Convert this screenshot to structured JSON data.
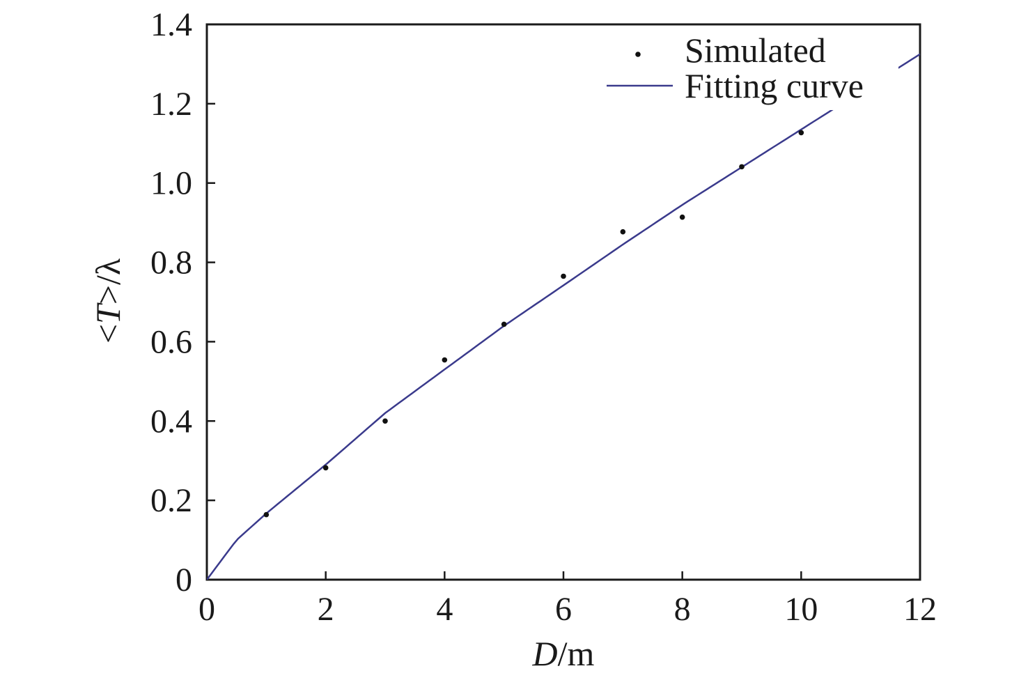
{
  "chart_data": {
    "type": "scatter",
    "xlabel": {
      "var": "D",
      "unit": "/m"
    },
    "ylabel": {
      "prefix": "<",
      "var": "T",
      "suffix": ">/λ"
    },
    "xlim": [
      0,
      12
    ],
    "ylim": [
      0,
      1.4
    ],
    "xticks": [
      0,
      2,
      4,
      6,
      8,
      10,
      12
    ],
    "xtick_labels": [
      "0",
      "2",
      "4",
      "6",
      "8",
      "10",
      "12"
    ],
    "yticks": [
      0,
      0.2,
      0.4,
      0.6,
      0.8,
      1.0,
      1.2,
      1.4
    ],
    "ytick_labels": [
      "0",
      "0.2",
      "0.4",
      "0.6",
      "0.8",
      "1.0",
      "1.2",
      "1.4"
    ],
    "grid": false,
    "legend_position": "top-right",
    "series": [
      {
        "name": "Simulated",
        "kind": "scatter",
        "color": "#111111",
        "x": [
          1,
          2,
          3,
          4,
          5,
          6,
          7,
          8,
          9,
          10
        ],
        "y": [
          0.164,
          0.282,
          0.4,
          0.554,
          0.644,
          0.765,
          0.877,
          0.914,
          1.041,
          1.127
        ]
      },
      {
        "name": "Fitting curve",
        "kind": "line",
        "color": "#3a3a8c",
        "x": [
          0,
          0.5,
          1,
          2,
          3,
          4,
          5,
          6,
          7,
          8,
          9,
          10,
          11,
          12
        ],
        "y": [
          0,
          0.1,
          0.167,
          0.29,
          0.42,
          0.53,
          0.64,
          0.742,
          0.845,
          0.945,
          1.04,
          1.135,
          1.23,
          1.325
        ]
      }
    ]
  }
}
